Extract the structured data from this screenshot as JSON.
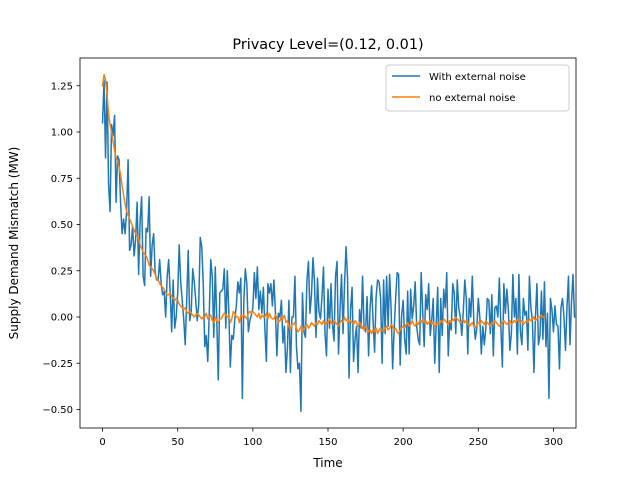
{
  "chart_data": {
    "type": "line",
    "title": "Privacy Level=(0.12, 0.01)",
    "xlabel": "Time",
    "ylabel": "Supply Demand Mismatch (MW)",
    "xlim": [
      -15,
      315
    ],
    "ylim": [
      -0.6,
      1.4
    ],
    "xticks": [
      0,
      50,
      100,
      150,
      200,
      250,
      300
    ],
    "yticks": [
      -0.5,
      -0.25,
      0.0,
      0.25,
      0.5,
      0.75,
      1.0,
      1.25
    ],
    "xtick_labels": [
      "0",
      "50",
      "100",
      "150",
      "200",
      "250",
      "300"
    ],
    "ytick_labels": [
      "−0.50",
      "−0.25",
      "0.00",
      "0.25",
      "0.50",
      "0.75",
      "1.00",
      "1.25"
    ],
    "grid": false,
    "legend_position": "top-right",
    "series": [
      {
        "name": "With external noise",
        "color": "#1f77b4",
        "x_start": 0,
        "x_step": 1,
        "values": [
          1.05,
          1.28,
          0.86,
          1.27,
          0.72,
          0.57,
          1.04,
          0.98,
          1.09,
          0.62,
          0.87,
          0.85,
          0.62,
          0.45,
          0.53,
          0.45,
          0.57,
          0.85,
          0.36,
          0.39,
          0.49,
          0.33,
          0.42,
          0.62,
          0.23,
          0.52,
          0.65,
          0.22,
          0.17,
          0.48,
          0.46,
          0.65,
          0.22,
          0.39,
          0.45,
          0.24,
          0.2,
          0.2,
          0.31,
          0.18,
          0.12,
          0.14,
          0.0,
          0.22,
          0.31,
          0.13,
          -0.08,
          0.2,
          -0.06,
          0.0,
          0.13,
          0.39,
          0.19,
          0.09,
          -0.01,
          -0.15,
          0.09,
          0.36,
          -0.02,
          0.03,
          0.26,
          0.19,
          0.09,
          -0.02,
          0.07,
          0.43,
          0.38,
          0.18,
          -0.16,
          -0.1,
          -0.24,
          0.02,
          0.31,
          0.22,
          -0.11,
          0.27,
          -0.02,
          -0.34,
          0.13,
          0.14,
          0.15,
          0.26,
          -0.06,
          0.25,
          0.03,
          -0.27,
          -0.1,
          -0.12,
          -0.01,
          0.06,
          0.19,
          0.13,
          0.21,
          -0.44,
          0.09,
          0.26,
          0.18,
          -0.08,
          -0.02,
          0.01,
          0.05,
          0.24,
          0.1,
          0.27,
          0.04,
          0.14,
          0.02,
          0.16,
          -0.06,
          -0.24,
          0.18,
          0.13,
          0.18,
          0.06,
          0.2,
          0.03,
          -0.21,
          0.02,
          0.0,
          0.09,
          -0.14,
          -0.05,
          -0.3,
          -0.17,
          0.09,
          -0.3,
          0.0,
          0.0,
          0.22,
          -0.16,
          -0.28,
          -0.25,
          -0.51,
          0.13,
          -0.08,
          -0.11,
          0.2,
          0.3,
          0.02,
          0.12,
          0.32,
          0.19,
          -0.11,
          0.21,
          0.03,
          -0.01,
          0.11,
          0.27,
          -0.09,
          -0.21,
          0.15,
          -0.06,
          0.18,
          -0.04,
          -0.13,
          0.22,
          0.3,
          -0.2,
          0.04,
          0.23,
          -0.09,
          0.18,
          0.38,
          0.21,
          -0.33,
          0.04,
          0.16,
          -0.24,
          -0.12,
          -0.05,
          -0.3,
          0.04,
          -0.06,
          0.22,
          -0.06,
          -0.08,
          0.11,
          -0.21,
          0.05,
          0.17,
          -0.02,
          -0.19,
          0.11,
          0.2,
          0.19,
          0.1,
          -0.25,
          0.2,
          -0.09,
          0.22,
          -0.05,
          0.23,
          0.04,
          -0.28,
          -0.07,
          0.1,
          0.24,
          0.23,
          -0.26,
          0.01,
          0.09,
          -0.12,
          -0.2,
          0.14,
          -0.2,
          0.15,
          -0.01,
          0.06,
          0.19,
          -0.05,
          -0.12,
          -0.15,
          0.24,
          0.03,
          -0.16,
          0.12,
          0.04,
          0.18,
          -0.1,
          -0.02,
          0.1,
          -0.25,
          -0.04,
          0.16,
          -0.3,
          0.1,
          -0.1,
          0.15,
          0.05,
          0.24,
          -0.21,
          -0.02,
          -0.07,
          0.18,
          0.13,
          -0.09,
          0.2,
          0.05,
          0.0,
          -0.1,
          0.03,
          0.2,
          0.1,
          -0.2,
          0.1,
          0.0,
          0.22,
          -0.02,
          -0.12,
          -0.06,
          0.1,
          0.0,
          -0.2,
          -0.05,
          -0.15,
          -0.06,
          0.1,
          0.09,
          -0.09,
          0.12,
          -0.21,
          0.05,
          0.06,
          0.0,
          0.21,
          -0.05,
          -0.27,
          0.18,
          0.02,
          0.15,
          0.04,
          -0.18,
          -0.09,
          0.23,
          0.0,
          0.1,
          -0.2,
          0.23,
          -0.08,
          -0.15,
          0.1,
          0.01,
          0.03,
          -0.18,
          0.22,
          0.05,
          -0.02,
          -0.3,
          0.0,
          0.18,
          -0.15,
          -0.1,
          0.14,
          -0.12,
          0.19,
          -0.16,
          0.02,
          -0.44,
          0.1,
          0.04,
          -0.08,
          0.06,
          -0.04,
          -0.05,
          -0.28,
          0.05,
          0.1,
          0.0,
          -0.18,
          0.05,
          0.22,
          -0.15,
          0.08,
          0.23,
          0.0
        ]
      },
      {
        "name": "no external noise",
        "color": "#ff7f0e",
        "x_start": 0,
        "x_step": 1,
        "values": [
          1.25,
          1.31,
          1.28,
          1.2,
          1.1,
          1.04,
          1.0,
          0.95,
          0.9,
          0.86,
          0.84,
          0.81,
          0.77,
          0.71,
          0.66,
          0.61,
          0.57,
          0.55,
          0.53,
          0.51,
          0.49,
          0.47,
          0.45,
          0.44,
          0.42,
          0.39,
          0.37,
          0.35,
          0.34,
          0.33,
          0.31,
          0.28,
          0.27,
          0.26,
          0.25,
          0.23,
          0.21,
          0.2,
          0.18,
          0.17,
          0.16,
          0.15,
          0.13,
          0.12,
          0.12,
          0.13,
          0.11,
          0.1,
          0.09,
          0.1,
          0.09,
          0.07,
          0.06,
          0.05,
          0.04,
          0.05,
          0.03,
          0.02,
          0.03,
          0.02,
          0.01,
          0.0,
          0.01,
          0.02,
          0.01,
          0.0,
          -0.01,
          0.0,
          0.0,
          0.02,
          -0.01,
          0.0,
          0.01,
          -0.02,
          -0.03,
          0.0,
          -0.02,
          -0.03,
          -0.01,
          -0.01,
          0.01,
          0.02,
          0.01,
          0.0,
          0.01,
          -0.03,
          -0.01,
          0.03,
          0.02,
          0.0,
          0.0,
          -0.03,
          0.01,
          0.0,
          0.01,
          0.0,
          -0.01,
          0.02,
          0.03,
          0.02,
          0.03,
          0.02,
          0.01,
          0.0,
          0.02,
          -0.01,
          0.01,
          0.0,
          0.0,
          0.02,
          -0.01,
          0.02,
          0.0,
          -0.01,
          -0.01,
          0.01,
          0.0,
          -0.03,
          -0.02,
          0.0,
          -0.01,
          0.01,
          -0.03,
          -0.02,
          -0.05,
          -0.07,
          -0.04,
          -0.04,
          -0.03,
          -0.06,
          -0.08,
          -0.07,
          -0.05,
          -0.08,
          -0.06,
          -0.05,
          -0.04,
          -0.06,
          -0.05,
          -0.03,
          -0.04,
          -0.05,
          -0.03,
          -0.04,
          -0.02,
          -0.03,
          -0.04,
          -0.02,
          -0.04,
          -0.03,
          -0.03,
          -0.01,
          -0.03,
          -0.04,
          -0.02,
          -0.03,
          -0.04,
          -0.05,
          -0.03,
          -0.02,
          -0.03,
          0.0,
          -0.02,
          -0.01,
          -0.03,
          -0.02,
          -0.03,
          -0.04,
          -0.02,
          -0.03,
          -0.05,
          -0.03,
          -0.04,
          -0.06,
          -0.07,
          -0.05,
          -0.06,
          -0.08,
          -0.07,
          -0.09,
          -0.07,
          -0.08,
          -0.06,
          -0.09,
          -0.07,
          -0.06,
          -0.07,
          -0.08,
          -0.06,
          -0.05,
          -0.07,
          -0.06,
          -0.04,
          -0.05,
          -0.07,
          -0.06,
          -0.08,
          -0.09,
          -0.07,
          -0.06,
          -0.05,
          -0.06,
          -0.04,
          -0.03,
          -0.05,
          -0.04,
          -0.02,
          -0.04,
          -0.05,
          -0.03,
          -0.04,
          -0.02,
          -0.03,
          -0.01,
          -0.03,
          -0.02,
          -0.04,
          -0.03,
          -0.02,
          -0.04,
          -0.03,
          -0.05,
          -0.04,
          -0.03,
          -0.04,
          -0.02,
          -0.03,
          -0.01,
          -0.02,
          -0.03,
          -0.04,
          -0.02,
          -0.03,
          -0.01,
          -0.02,
          0.0,
          -0.01,
          -0.02,
          -0.03,
          -0.02,
          -0.01,
          -0.03,
          -0.02,
          -0.04,
          -0.05,
          -0.04,
          -0.03,
          -0.05,
          -0.06,
          -0.04,
          -0.03,
          -0.04,
          -0.02,
          -0.03,
          -0.04,
          -0.02,
          -0.03,
          -0.04,
          -0.05,
          -0.03,
          -0.04,
          -0.02,
          -0.03,
          -0.04,
          -0.05,
          -0.04,
          -0.03,
          -0.02,
          -0.03,
          -0.04,
          -0.03,
          -0.02,
          -0.04,
          -0.03,
          -0.02,
          -0.03,
          -0.01,
          -0.02,
          -0.03,
          -0.02,
          -0.04,
          -0.03,
          -0.02,
          -0.03,
          -0.01,
          -0.02,
          -0.01,
          0.0,
          -0.02,
          -0.01,
          0.0,
          0.0,
          0.01,
          0.0,
          0.0
        ]
      }
    ]
  }
}
